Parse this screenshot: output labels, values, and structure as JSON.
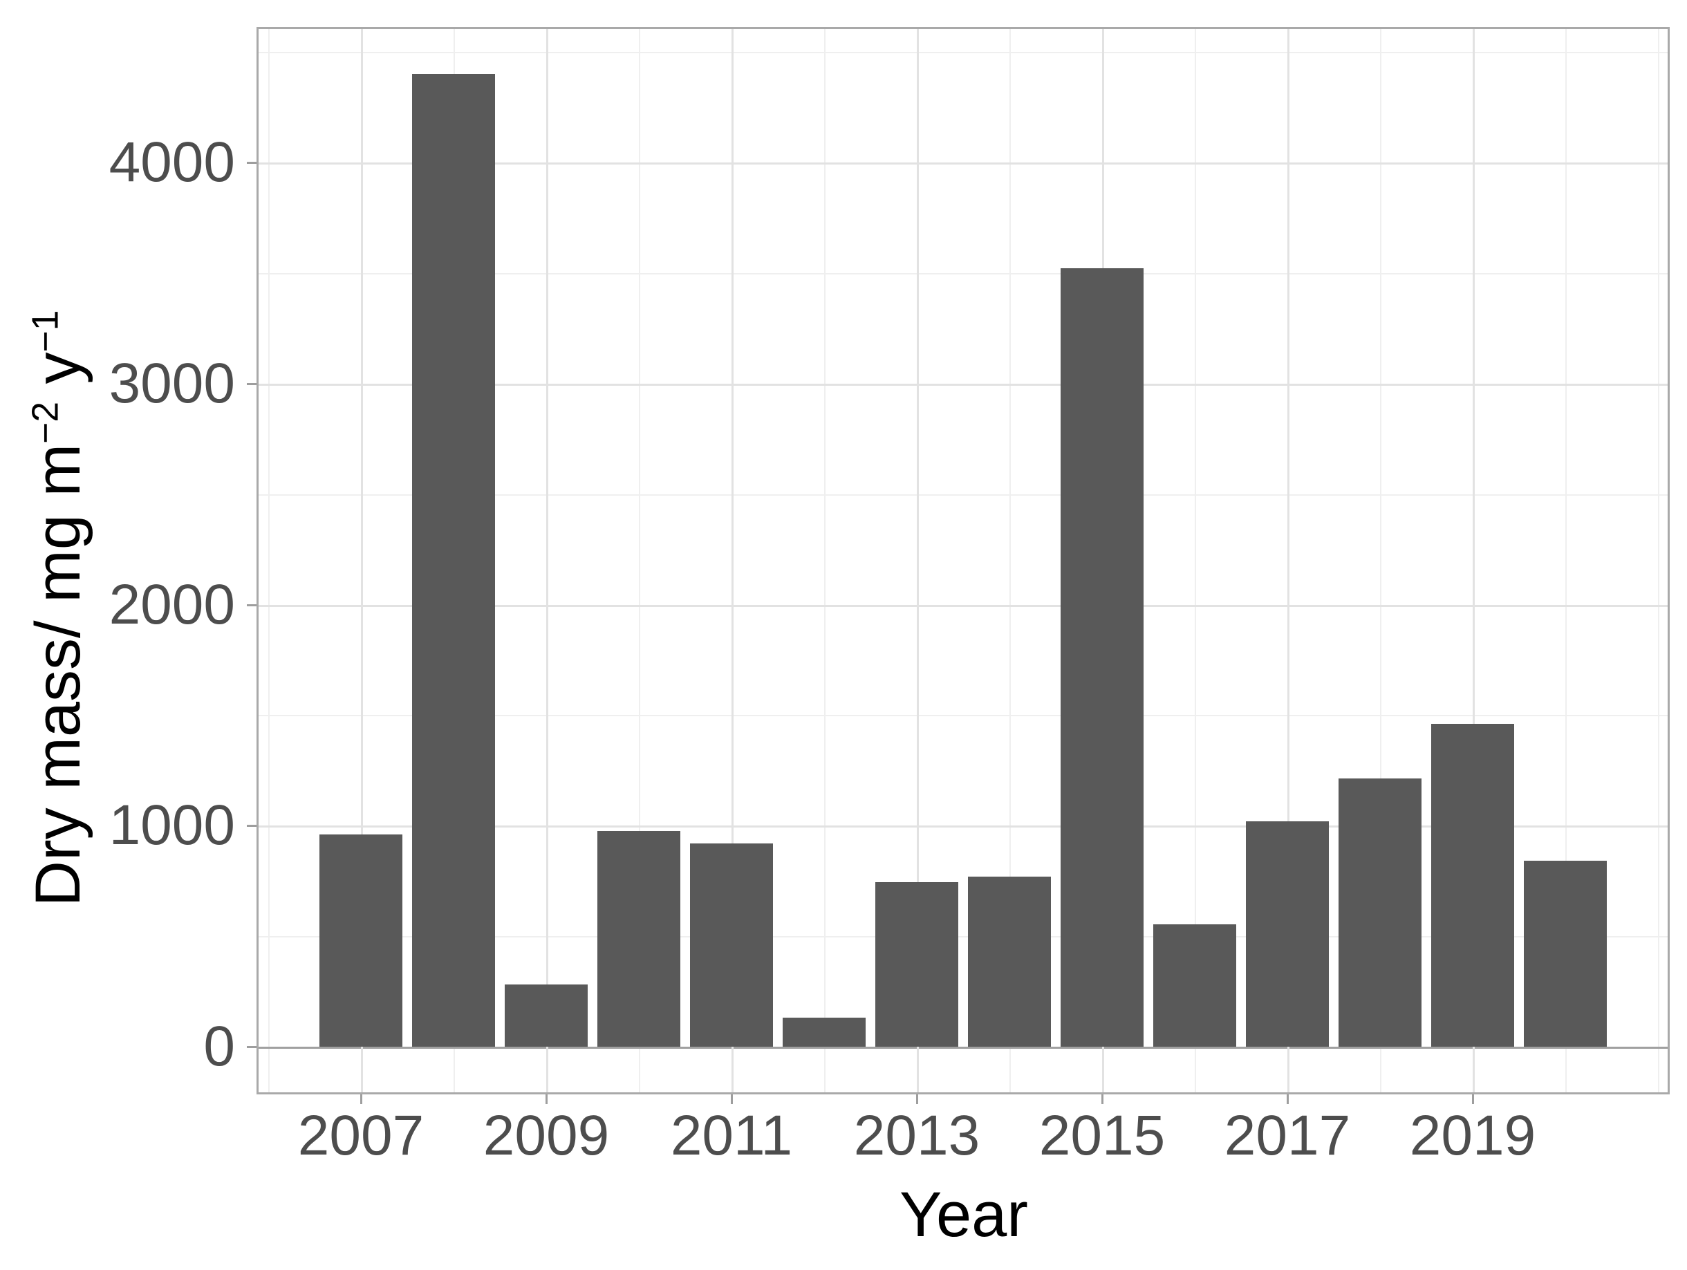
{
  "chart_data": {
    "type": "bar",
    "title": "",
    "xlabel": "Year",
    "ylabel": "Dry mass/ mg m−2 y−1",
    "ylabel_parts": {
      "prefix": "Dry mass/ mg m",
      "sup1": "−2",
      "mid": " y",
      "sup2": "−1"
    },
    "categories": [
      2007,
      2008,
      2009,
      2010,
      2011,
      2012,
      2013,
      2014,
      2015,
      2016,
      2017,
      2018,
      2019,
      2020
    ],
    "values": [
      960,
      4400,
      280,
      975,
      920,
      130,
      745,
      770,
      3520,
      555,
      1020,
      1215,
      1460,
      840
    ],
    "series_name": "Dry mass",
    "ylim": [
      0,
      4610
    ],
    "y_ticks": [
      0,
      1000,
      2000,
      3000,
      4000
    ],
    "y_tick_labels": [
      "0",
      "1000",
      "2000",
      "3000",
      "4000"
    ],
    "y_minor_ticks": [
      500,
      1500,
      2500,
      3500,
      4500
    ],
    "x_tick_years": [
      2007,
      2009,
      2011,
      2013,
      2015,
      2017,
      2019
    ],
    "x_tick_labels": [
      "2007",
      "2009",
      "2011",
      "2013",
      "2015",
      "2017",
      "2019"
    ],
    "x_grid_major_years": [
      2007,
      2009,
      2011,
      2013,
      2015,
      2017,
      2019
    ],
    "x_grid_minor_years": [
      2006,
      2008,
      2010,
      2012,
      2014,
      2016,
      2018,
      2020,
      2021
    ],
    "grid": true,
    "legend_position": "none",
    "colors": {
      "bar": "#595959",
      "grid_major": "#e2e2e2",
      "grid_minor": "#efefef",
      "panel_border": "#a9a9a9",
      "axis_line": "#a0a0a0",
      "tick": "#9e9e9e",
      "tick_label": "#4d4d4d",
      "axis_title": "#000000",
      "background": "#ffffff"
    }
  }
}
